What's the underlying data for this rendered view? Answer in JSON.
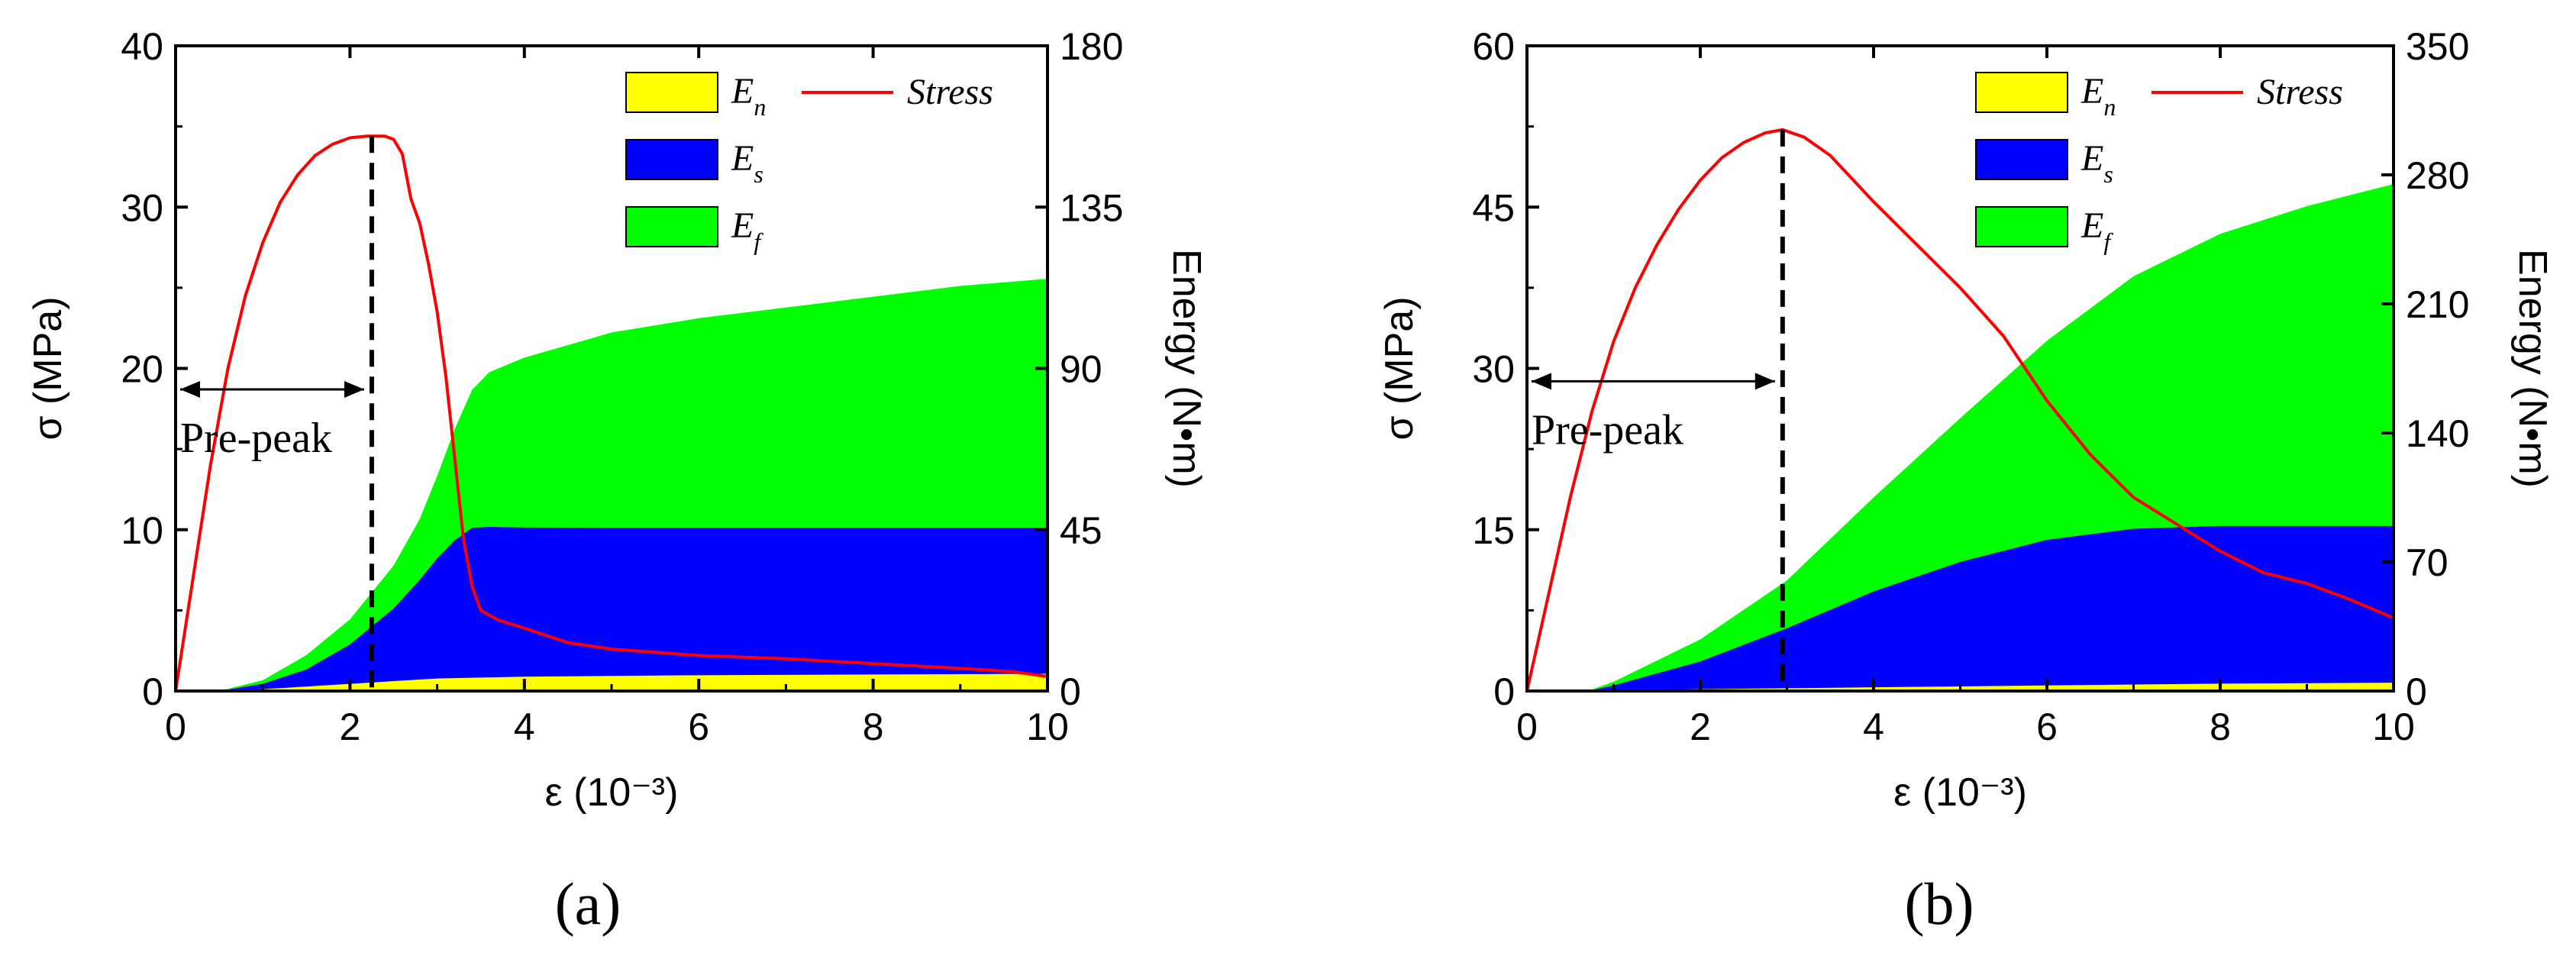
{
  "charts": [
    {
      "panel_label": "(a)",
      "chart_data": {
        "type": "area",
        "xlabel": "ε (10⁻³)",
        "ylabel": "σ (MPa)",
        "y2label": "Energy (N•m)",
        "xlim": [
          0,
          10
        ],
        "ylim": [
          0,
          40
        ],
        "y2lim": [
          0,
          180
        ],
        "xticks": [
          "0",
          "2",
          "4",
          "6",
          "8",
          "10"
        ],
        "yticks": [
          "0",
          "10",
          "20",
          "30",
          "40"
        ],
        "y2ticks": [
          "0",
          "45",
          "90",
          "135",
          "180"
        ],
        "legend": {
          "en": "E",
          "en_sub": "n",
          "es": "E",
          "es_sub": "s",
          "ef": "E",
          "ef_sub": "f",
          "stress": "Stress"
        },
        "colors": {
          "en": "#ffff00",
          "es": "#0000ff",
          "ef": "#00ff00",
          "stress": "#ff0000"
        },
        "annotation": {
          "text": "Pre-peak",
          "x_from": 0,
          "x_to": 2.25,
          "y": 18.7
        },
        "peak_x": 2.25,
        "peak_stress": 34.4,
        "series": [
          {
            "name": "Stress",
            "axis": "left",
            "x": [
              0,
              0.2,
              0.4,
              0.6,
              0.8,
              1.0,
              1.2,
              1.4,
              1.6,
              1.8,
              2.0,
              2.2,
              2.4,
              2.5,
              2.6,
              2.7,
              2.8,
              2.9,
              3.0,
              3.1,
              3.2,
              3.3,
              3.4,
              3.5,
              3.7,
              4.0,
              4.5,
              5.0,
              6.0,
              7.0,
              8.0,
              9.0,
              9.6,
              10.0
            ],
            "y": [
              0,
              7,
              14,
              20,
              24.5,
              27.8,
              30.3,
              32,
              33.2,
              33.9,
              34.3,
              34.4,
              34.4,
              34.2,
              33.3,
              30.5,
              29.0,
              26.5,
              23.5,
              19.5,
              14.5,
              9.5,
              6.5,
              5.0,
              4.4,
              3.9,
              3.0,
              2.6,
              2.2,
              2.0,
              1.7,
              1.4,
              1.2,
              0.9
            ]
          },
          {
            "name": "E_n",
            "axis": "right",
            "x": [
              0,
              0.5,
              1,
              2,
              3,
              4,
              5,
              6,
              7,
              8,
              9,
              10
            ],
            "y": [
              0,
              0,
              0.5,
              2,
              3.5,
              4,
              4.2,
              4.4,
              4.5,
              4.6,
              4.7,
              4.8
            ]
          },
          {
            "name": "E_s",
            "axis": "right",
            "x": [
              0,
              0.5,
              1,
              1.5,
              2,
              2.5,
              2.8,
              3.0,
              3.2,
              3.4,
              3.6,
              4,
              5,
              6,
              7,
              8,
              9,
              10
            ],
            "y": [
              0,
              0,
              2,
              6,
              13,
              23,
              31,
              37,
              42,
              45.5,
              45.8,
              45.6,
              45.5,
              45.5,
              45.5,
              45.5,
              45.5,
              45.5
            ]
          },
          {
            "name": "E_f",
            "axis": "right",
            "x": [
              0,
              0.5,
              1,
              1.5,
              2,
              2.5,
              2.8,
              3.0,
              3.2,
              3.4,
              3.6,
              4,
              5,
              6,
              7,
              8,
              9,
              10
            ],
            "y": [
              0,
              0,
              3,
              10,
              20,
              35,
              48,
              60,
              73,
              84,
              89,
              93,
              100,
              104,
              107,
              110,
              113,
              115
            ]
          }
        ]
      }
    },
    {
      "panel_label": "(b)",
      "chart_data": {
        "type": "area",
        "xlabel": "ε (10⁻³)",
        "ylabel": "σ (MPa)",
        "y2label": "Energy (N•m)",
        "xlim": [
          0,
          10
        ],
        "ylim": [
          0,
          60
        ],
        "y2lim": [
          0,
          350
        ],
        "xticks": [
          "0",
          "2",
          "4",
          "6",
          "8",
          "10"
        ],
        "yticks": [
          "0",
          "15",
          "30",
          "45",
          "60"
        ],
        "y2ticks": [
          "0",
          "70",
          "140",
          "210",
          "280",
          "350"
        ],
        "legend": {
          "en": "E",
          "en_sub": "n",
          "es": "E",
          "es_sub": "s",
          "ef": "E",
          "ef_sub": "f",
          "stress": "Stress"
        },
        "colors": {
          "en": "#ffff00",
          "es": "#0000ff",
          "ef": "#00ff00",
          "stress": "#ff0000"
        },
        "annotation": {
          "text": "Pre-peak",
          "x_from": 0,
          "x_to": 2.95,
          "y": 28.8
        },
        "peak_x": 2.95,
        "peak_stress": 52.2,
        "series": [
          {
            "name": "Stress",
            "axis": "left",
            "x": [
              0,
              0.25,
              0.5,
              0.75,
              1.0,
              1.25,
              1.5,
              1.75,
              2.0,
              2.25,
              2.5,
              2.75,
              2.95,
              3.2,
              3.5,
              4.0,
              4.5,
              5.0,
              5.5,
              6.0,
              6.5,
              7.0,
              7.5,
              8.0,
              8.5,
              9.0,
              9.5,
              10.0
            ],
            "y": [
              0,
              9,
              18,
              26,
              32.5,
              37.5,
              41.5,
              44.8,
              47.5,
              49.6,
              51.0,
              51.9,
              52.2,
              51.5,
              49.8,
              45.5,
              41.5,
              37.5,
              33.0,
              27.0,
              22.0,
              18.0,
              15.5,
              13.0,
              11.0,
              10.0,
              8.5,
              6.8
            ]
          },
          {
            "name": "E_n",
            "axis": "right",
            "x": [
              0,
              0.7,
              2,
              4,
              6,
              8,
              10
            ],
            "y": [
              0,
              0,
              1,
              2,
              3,
              4,
              4.5
            ]
          },
          {
            "name": "E_s",
            "axis": "right",
            "x": [
              0,
              0.7,
              1,
              2,
              3,
              4,
              5,
              6,
              7,
              8,
              9,
              10
            ],
            "y": [
              0,
              0,
              3,
              16,
              34,
              54,
              70,
              82,
              88,
              89.5,
              89.5,
              89.5
            ]
          },
          {
            "name": "E_f",
            "axis": "right",
            "x": [
              0,
              0.7,
              1,
              2,
              3,
              4,
              5,
              6,
              7,
              8,
              9,
              10
            ],
            "y": [
              0,
              0,
              5,
              28,
              60,
              105,
              148,
              190,
              225,
              248,
              263,
              275
            ]
          }
        ]
      }
    }
  ]
}
